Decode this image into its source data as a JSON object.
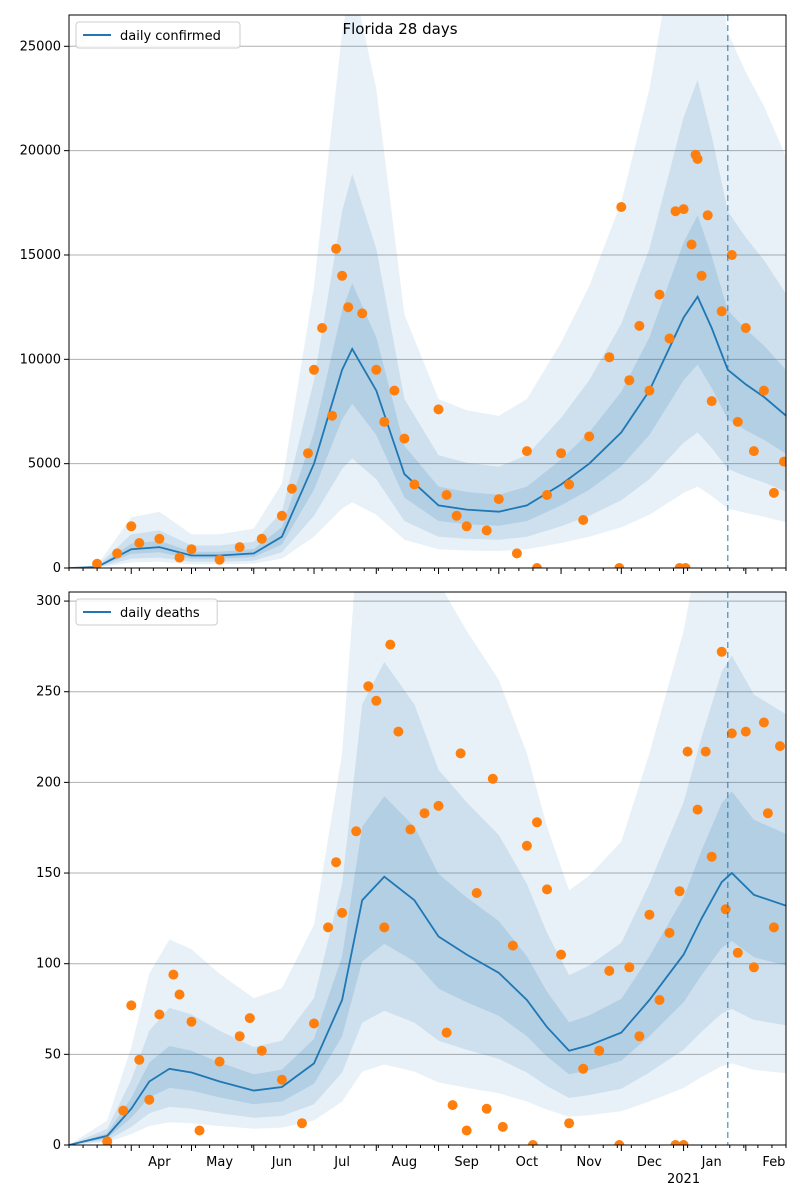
{
  "title": "Florida 28 days",
  "x_ticks": [
    "Apr",
    "May",
    "Jun",
    "Jul",
    "Aug",
    "Sep",
    "Oct",
    "Nov",
    "Dec",
    "Jan",
    "Feb"
  ],
  "x_year_label": "2021",
  "colors": {
    "line": "#1f77b4",
    "points": "#ff7f0e",
    "band": "#1f77b4",
    "grid": "#b0b0b0"
  },
  "chart_data": [
    {
      "type": "line",
      "legend": "daily confirmed",
      "legend_position": "top-left",
      "grid": "y",
      "ylim": [
        0,
        26500
      ],
      "y_ticks": [
        0,
        5000,
        10000,
        15000,
        20000,
        25000
      ],
      "x_range": [
        "2020-03-01",
        "2021-02-21"
      ],
      "forecast_start": "2021-01-23",
      "x": [
        "2020-03-01",
        "2020-03-15",
        "2020-04-01",
        "2020-04-15",
        "2020-05-01",
        "2020-05-15",
        "2020-06-01",
        "2020-06-15",
        "2020-07-01",
        "2020-07-15",
        "2020-07-20",
        "2020-08-01",
        "2020-08-15",
        "2020-09-01",
        "2020-09-15",
        "2020-10-01",
        "2020-10-15",
        "2020-11-01",
        "2020-11-15",
        "2020-12-01",
        "2020-12-15",
        "2021-01-01",
        "2021-01-08",
        "2021-01-15",
        "2021-01-23",
        "2021-02-01",
        "2021-02-10",
        "2021-02-21"
      ],
      "y": [
        0,
        50,
        900,
        1000,
        600,
        600,
        700,
        1500,
        5000,
        9500,
        10500,
        8500,
        4500,
        3000,
        2800,
        2700,
        3000,
        4000,
        5000,
        6500,
        8500,
        12000,
        13000,
        11500,
        9500,
        8800,
        8200,
        7300
      ],
      "points": [
        [
          "2020-03-15",
          200
        ],
        [
          "2020-03-25",
          700
        ],
        [
          "2020-04-01",
          2000
        ],
        [
          "2020-04-05",
          1200
        ],
        [
          "2020-04-15",
          1400
        ],
        [
          "2020-04-25",
          500
        ],
        [
          "2020-05-01",
          900
        ],
        [
          "2020-05-15",
          400
        ],
        [
          "2020-05-25",
          1000
        ],
        [
          "2020-06-05",
          1400
        ],
        [
          "2020-06-15",
          2500
        ],
        [
          "2020-06-20",
          3800
        ],
        [
          "2020-06-28",
          5500
        ],
        [
          "2020-07-01",
          9500
        ],
        [
          "2020-07-05",
          11500
        ],
        [
          "2020-07-10",
          7300
        ],
        [
          "2020-07-12",
          15300
        ],
        [
          "2020-07-15",
          14000
        ],
        [
          "2020-07-18",
          12500
        ],
        [
          "2020-07-25",
          12200
        ],
        [
          "2020-08-01",
          9500
        ],
        [
          "2020-08-05",
          7000
        ],
        [
          "2020-08-10",
          8500
        ],
        [
          "2020-08-15",
          6200
        ],
        [
          "2020-08-20",
          4000
        ],
        [
          "2020-09-01",
          7600
        ],
        [
          "2020-09-05",
          3500
        ],
        [
          "2020-09-10",
          2500
        ],
        [
          "2020-09-15",
          2000
        ],
        [
          "2020-09-25",
          1800
        ],
        [
          "2020-10-01",
          3300
        ],
        [
          "2020-10-10",
          700
        ],
        [
          "2020-10-15",
          5600
        ],
        [
          "2020-10-20",
          0
        ],
        [
          "2020-10-25",
          3500
        ],
        [
          "2020-11-01",
          5500
        ],
        [
          "2020-11-05",
          4000
        ],
        [
          "2020-11-12",
          2300
        ],
        [
          "2020-11-15",
          6300
        ],
        [
          "2020-11-25",
          10100
        ],
        [
          "2020-11-30",
          0
        ],
        [
          "2020-12-01",
          17300
        ],
        [
          "2020-12-05",
          9000
        ],
        [
          "2020-12-10",
          11600
        ],
        [
          "2020-12-15",
          8500
        ],
        [
          "2020-12-20",
          13100
        ],
        [
          "2020-12-25",
          11000
        ],
        [
          "2020-12-28",
          17100
        ],
        [
          "2020-12-30",
          0
        ],
        [
          "2021-01-01",
          17200
        ],
        [
          "2021-01-02",
          0
        ],
        [
          "2021-01-05",
          15500
        ],
        [
          "2021-01-07",
          19800
        ],
        [
          "2021-01-08",
          19600
        ],
        [
          "2021-01-10",
          14000
        ],
        [
          "2021-01-13",
          16900
        ],
        [
          "2021-01-15",
          8000
        ],
        [
          "2021-01-20",
          12300
        ],
        [
          "2021-01-25",
          15000
        ],
        [
          "2021-01-28",
          7000
        ],
        [
          "2021-02-01",
          11500
        ],
        [
          "2021-02-05",
          5600
        ],
        [
          "2021-02-10",
          8500
        ],
        [
          "2021-02-15",
          3600
        ],
        [
          "2021-02-20",
          5100
        ]
      ]
    },
    {
      "type": "line",
      "legend": "daily deaths",
      "legend_position": "top-left",
      "grid": "y",
      "ylim": [
        0,
        305
      ],
      "y_ticks": [
        0,
        50,
        100,
        150,
        200,
        250,
        300
      ],
      "x_range": [
        "2020-03-01",
        "2021-02-21"
      ],
      "forecast_start": "2021-01-23",
      "x": [
        "2020-03-01",
        "2020-03-20",
        "2020-04-01",
        "2020-04-10",
        "2020-04-20",
        "2020-05-01",
        "2020-05-15",
        "2020-06-01",
        "2020-06-15",
        "2020-07-01",
        "2020-07-15",
        "2020-07-25",
        "2020-08-05",
        "2020-08-20",
        "2020-09-01",
        "2020-09-15",
        "2020-10-01",
        "2020-10-15",
        "2020-10-25",
        "2020-11-05",
        "2020-11-15",
        "2020-12-01",
        "2020-12-15",
        "2021-01-01",
        "2021-01-10",
        "2021-01-20",
        "2021-01-25",
        "2021-02-05",
        "2021-02-21"
      ],
      "y": [
        0,
        5,
        20,
        35,
        42,
        40,
        35,
        30,
        32,
        45,
        80,
        135,
        148,
        135,
        115,
        105,
        95,
        80,
        65,
        52,
        55,
        62,
        80,
        105,
        125,
        145,
        150,
        138,
        132
      ],
      "points": [
        [
          "2020-03-20",
          2
        ],
        [
          "2020-03-28",
          19
        ],
        [
          "2020-04-01",
          77
        ],
        [
          "2020-04-05",
          47
        ],
        [
          "2020-04-10",
          25
        ],
        [
          "2020-04-15",
          72
        ],
        [
          "2020-04-22",
          94
        ],
        [
          "2020-04-25",
          83
        ],
        [
          "2020-05-01",
          68
        ],
        [
          "2020-05-05",
          8
        ],
        [
          "2020-05-15",
          46
        ],
        [
          "2020-05-25",
          60
        ],
        [
          "2020-05-30",
          70
        ],
        [
          "2020-06-05",
          52
        ],
        [
          "2020-06-15",
          36
        ],
        [
          "2020-06-25",
          12
        ],
        [
          "2020-07-01",
          67
        ],
        [
          "2020-07-08",
          120
        ],
        [
          "2020-07-12",
          156
        ],
        [
          "2020-07-15",
          128
        ],
        [
          "2020-07-22",
          173
        ],
        [
          "2020-07-28",
          253
        ],
        [
          "2020-08-01",
          245
        ],
        [
          "2020-08-05",
          120
        ],
        [
          "2020-08-08",
          276
        ],
        [
          "2020-08-12",
          228
        ],
        [
          "2020-08-18",
          174
        ],
        [
          "2020-08-25",
          183
        ],
        [
          "2020-09-01",
          187
        ],
        [
          "2020-09-05",
          62
        ],
        [
          "2020-09-08",
          22
        ],
        [
          "2020-09-12",
          216
        ],
        [
          "2020-09-15",
          8
        ],
        [
          "2020-09-20",
          139
        ],
        [
          "2020-09-25",
          20
        ],
        [
          "2020-09-28",
          202
        ],
        [
          "2020-10-03",
          10
        ],
        [
          "2020-10-08",
          110
        ],
        [
          "2020-10-15",
          165
        ],
        [
          "2020-10-18",
          0
        ],
        [
          "2020-10-20",
          178
        ],
        [
          "2020-10-25",
          141
        ],
        [
          "2020-11-01",
          105
        ],
        [
          "2020-11-05",
          12
        ],
        [
          "2020-11-12",
          42
        ],
        [
          "2020-11-20",
          52
        ],
        [
          "2020-11-25",
          96
        ],
        [
          "2020-11-30",
          0
        ],
        [
          "2020-12-05",
          98
        ],
        [
          "2020-12-10",
          60
        ],
        [
          "2020-12-15",
          127
        ],
        [
          "2020-12-20",
          80
        ],
        [
          "2020-12-25",
          117
        ],
        [
          "2020-12-28",
          0
        ],
        [
          "2020-12-30",
          140
        ],
        [
          "2021-01-01",
          0
        ],
        [
          "2021-01-03",
          217
        ],
        [
          "2021-01-08",
          185
        ],
        [
          "2021-01-12",
          217
        ],
        [
          "2021-01-15",
          159
        ],
        [
          "2021-01-20",
          272
        ],
        [
          "2021-01-22",
          130
        ],
        [
          "2021-01-25",
          227
        ],
        [
          "2021-01-28",
          106
        ],
        [
          "2021-02-01",
          228
        ],
        [
          "2021-02-05",
          98
        ],
        [
          "2021-02-10",
          233
        ],
        [
          "2021-02-12",
          183
        ],
        [
          "2021-02-15",
          120
        ],
        [
          "2021-02-18",
          220
        ]
      ]
    }
  ]
}
